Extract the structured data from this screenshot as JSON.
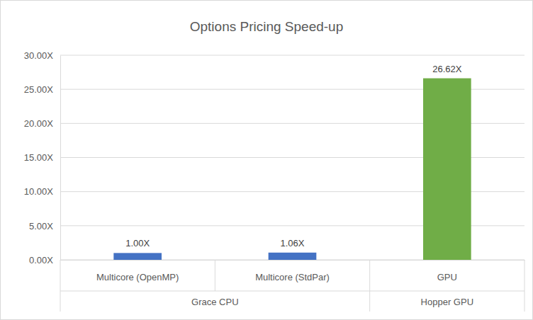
{
  "chart_data": {
    "type": "bar",
    "title": "Options Pricing Speed-up",
    "categories": [
      "Multicore (OpenMP)",
      "Multicore (StdPar)",
      "GPU"
    ],
    "groups": [
      "Grace CPU",
      "Grace CPU",
      "Hopper GPU"
    ],
    "values": [
      1.0,
      1.06,
      26.62
    ],
    "value_labels": [
      "1.00X",
      "1.06X",
      "26.62X"
    ],
    "colors": [
      "#4472c4",
      "#4472c4",
      "#70ad47"
    ],
    "ylim": [
      0,
      30
    ],
    "yticks": [
      {
        "value": 0,
        "label": "0.00X"
      },
      {
        "value": 5,
        "label": "5.00X"
      },
      {
        "value": 10,
        "label": "10.00X"
      },
      {
        "value": 15,
        "label": "15.00X"
      },
      {
        "value": 20,
        "label": "20.00X"
      },
      {
        "value": 25,
        "label": "25.00X"
      },
      {
        "value": 30,
        "label": "30.00X"
      }
    ],
    "grid": true,
    "data_labels": true
  }
}
